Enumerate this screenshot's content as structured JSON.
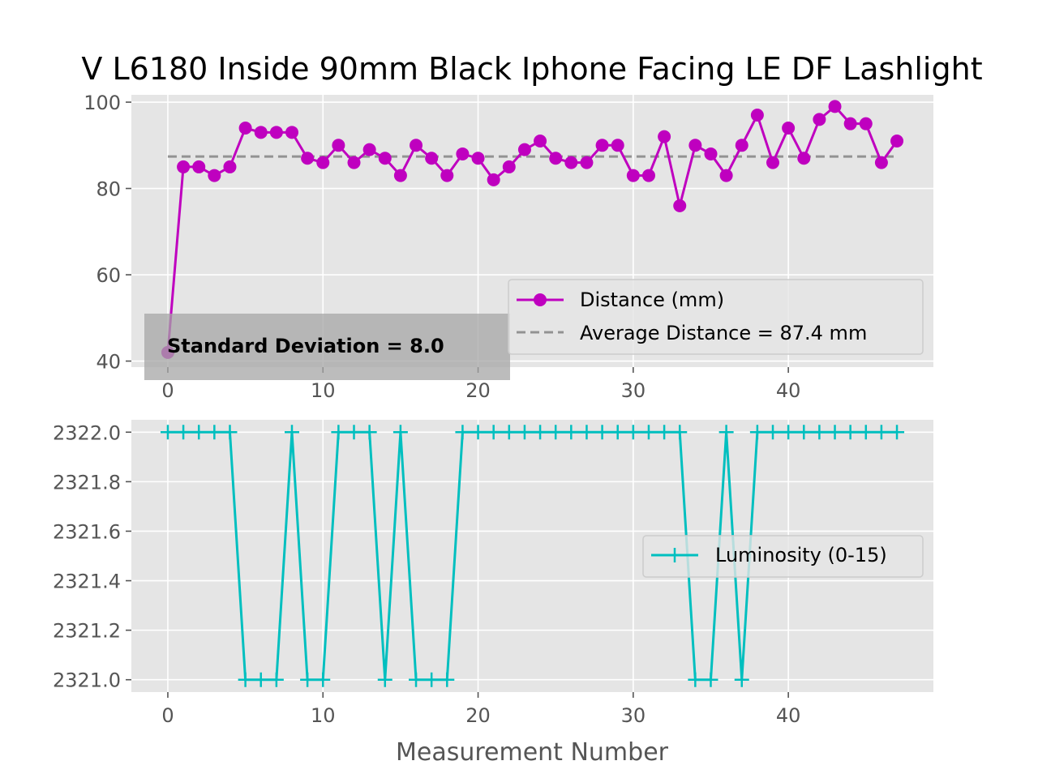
{
  "chart_data": {
    "title": "V L6180 Inside 90mm Black Iphone Facing LE DF Lashlight",
    "panels": [
      {
        "type": "line",
        "x": [
          0,
          1,
          2,
          3,
          4,
          5,
          6,
          7,
          8,
          9,
          10,
          11,
          12,
          13,
          14,
          15,
          16,
          17,
          18,
          19,
          20,
          21,
          22,
          23,
          24,
          25,
          26,
          27,
          28,
          29,
          30,
          31,
          32,
          33,
          34,
          35,
          36,
          37,
          38,
          39,
          40,
          41,
          42,
          43,
          44,
          45,
          46,
          47
        ],
        "series": [
          {
            "name": "Distance (mm)",
            "color": "#bf00bf",
            "marker": "circle",
            "values": [
              42,
              85,
              85,
              83,
              85,
              94,
              93,
              93,
              93,
              87,
              86,
              90,
              86,
              89,
              87,
              83,
              90,
              87,
              83,
              88,
              87,
              82,
              85,
              89,
              91,
              87,
              86,
              86,
              90,
              90,
              83,
              83,
              92,
              76,
              90,
              88,
              83,
              90,
              97,
              86,
              94,
              87,
              96,
              99,
              95,
              95,
              86,
              91
            ]
          }
        ],
        "reference_line": {
          "name": "Average Distance = 87.4 mm",
          "value": 87.4,
          "x_range": [
            0,
            47
          ],
          "color": "#929292",
          "style": "dashed"
        },
        "annotation": "Standard Deviation = 8.0",
        "xlim": [
          -2.35,
          49.35
        ],
        "ylim": [
          38.6,
          101.7
        ],
        "xticks": [
          0,
          10,
          20,
          30,
          40
        ],
        "yticks": [
          40,
          60,
          80,
          100
        ],
        "xtick_labels": [
          "0",
          "10",
          "20",
          "30",
          "40"
        ],
        "ytick_labels": [
          "40",
          "60",
          "80",
          "100"
        ],
        "legend": "center-right",
        "grid": true,
        "background": "#e5e5e5"
      },
      {
        "type": "line",
        "x": [
          0,
          1,
          2,
          3,
          4,
          5,
          6,
          7,
          8,
          9,
          10,
          11,
          12,
          13,
          14,
          15,
          16,
          17,
          18,
          19,
          20,
          21,
          22,
          23,
          24,
          25,
          26,
          27,
          28,
          29,
          30,
          31,
          32,
          33,
          34,
          35,
          36,
          37,
          38,
          39,
          40,
          41,
          42,
          43,
          44,
          45,
          46,
          47
        ],
        "series": [
          {
            "name": "Luminosity (0-15)",
            "color": "#00bfbf",
            "marker": "plus",
            "values": [
              2322,
              2322,
              2322,
              2322,
              2322,
              2321,
              2321,
              2321,
              2322,
              2321,
              2321,
              2322,
              2322,
              2322,
              2321,
              2322,
              2321,
              2321,
              2321,
              2322,
              2322,
              2322,
              2322,
              2322,
              2322,
              2322,
              2322,
              2322,
              2322,
              2322,
              2322,
              2322,
              2322,
              2322,
              2321,
              2321,
              2322,
              2321,
              2322,
              2322,
              2322,
              2322,
              2322,
              2322,
              2322,
              2322,
              2322,
              2322
            ]
          }
        ],
        "xlim": [
          -2.35,
          49.35
        ],
        "ylim": [
          2320.95,
          2322.05
        ],
        "xticks": [
          0,
          10,
          20,
          30,
          40
        ],
        "yticks": [
          2321.0,
          2321.2,
          2321.4,
          2321.6,
          2321.8,
          2322.0
        ],
        "xtick_labels": [
          "0",
          "10",
          "20",
          "30",
          "40"
        ],
        "ytick_labels": [
          "2321.0",
          "2321.2",
          "2321.4",
          "2321.6",
          "2321.8",
          "2322.0"
        ],
        "xlabel": "Measurement Number",
        "legend": "center-right",
        "grid": true,
        "background": "#e5e5e5"
      }
    ]
  }
}
